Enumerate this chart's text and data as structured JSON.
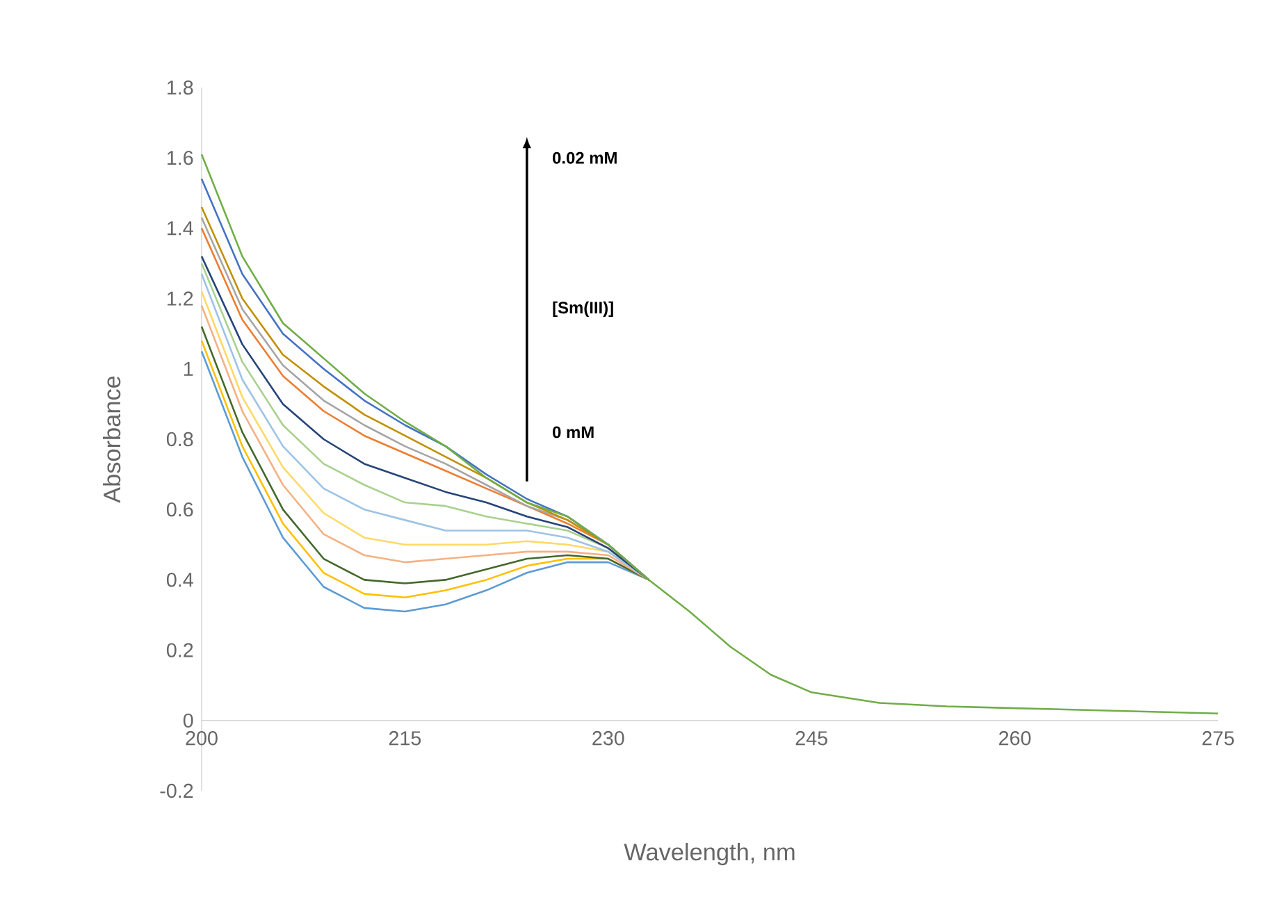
{
  "chart_data": {
    "type": "line",
    "xlabel": "Wavelength, nm",
    "ylabel": "Absorbance",
    "annotations": [
      "0.02 mM",
      "[Sm(III)]",
      "0 mM"
    ],
    "x": [
      200,
      203,
      206,
      209,
      212,
      215,
      218,
      221,
      224,
      227,
      230,
      233,
      236,
      239,
      242,
      245,
      250,
      255,
      260,
      265,
      270,
      275
    ],
    "series": [
      {
        "color": "#5b9bd5",
        "values": [
          1.05,
          0.75,
          0.52,
          0.38,
          0.32,
          0.31,
          0.33,
          0.37,
          0.42,
          0.45,
          0.45,
          0.4,
          null,
          null,
          null,
          null,
          null,
          null,
          null,
          null,
          null,
          null
        ]
      },
      {
        "color": "#ffc000",
        "values": [
          1.08,
          0.78,
          0.56,
          0.42,
          0.36,
          0.35,
          0.37,
          0.4,
          0.44,
          0.46,
          0.46,
          0.4,
          null,
          null,
          null,
          null,
          null,
          null,
          null,
          null,
          null,
          null
        ]
      },
      {
        "color": "#43682b",
        "values": [
          1.12,
          0.82,
          0.6,
          0.46,
          0.4,
          0.39,
          0.4,
          0.43,
          0.46,
          0.47,
          0.46,
          0.4,
          null,
          null,
          null,
          null,
          null,
          null,
          null,
          null,
          null,
          null
        ]
      },
      {
        "color": "#f4b183",
        "values": [
          1.18,
          0.88,
          0.67,
          0.53,
          0.47,
          0.45,
          0.46,
          0.47,
          0.48,
          0.48,
          0.47,
          0.4,
          null,
          null,
          null,
          null,
          null,
          null,
          null,
          null,
          null,
          null
        ]
      },
      {
        "color": "#ffd966",
        "values": [
          1.22,
          0.92,
          0.72,
          0.59,
          0.52,
          0.5,
          0.5,
          0.5,
          0.51,
          0.5,
          0.48,
          0.4,
          null,
          null,
          null,
          null,
          null,
          null,
          null,
          null,
          null,
          null
        ]
      },
      {
        "color": "#9dc3e6",
        "values": [
          1.27,
          0.97,
          0.78,
          0.66,
          0.6,
          0.57,
          0.54,
          0.54,
          0.54,
          0.52,
          0.48,
          0.4,
          null,
          null,
          null,
          null,
          null,
          null,
          null,
          null,
          null,
          null
        ]
      },
      {
        "color": "#a9d18e",
        "values": [
          1.3,
          1.02,
          0.84,
          0.73,
          0.67,
          0.62,
          0.61,
          0.58,
          0.56,
          0.54,
          0.49,
          0.4,
          null,
          null,
          null,
          null,
          null,
          null,
          null,
          null,
          null,
          null
        ]
      },
      {
        "color": "#264478",
        "values": [
          1.32,
          1.07,
          0.9,
          0.8,
          0.73,
          0.69,
          0.65,
          0.62,
          0.58,
          0.55,
          0.49,
          0.4,
          null,
          null,
          null,
          null,
          null,
          null,
          null,
          null,
          null,
          null
        ]
      },
      {
        "color": "#ed7d31",
        "values": [
          1.4,
          1.14,
          0.98,
          0.88,
          0.81,
          0.76,
          0.71,
          0.66,
          0.61,
          0.56,
          0.5,
          0.4,
          null,
          null,
          null,
          null,
          null,
          null,
          null,
          null,
          null,
          null
        ]
      },
      {
        "color": "#a5a5a5",
        "values": [
          1.43,
          1.17,
          1.01,
          0.91,
          0.84,
          0.78,
          0.73,
          0.67,
          0.61,
          0.57,
          0.5,
          0.4,
          null,
          null,
          null,
          null,
          null,
          null,
          null,
          null,
          null,
          null
        ]
      },
      {
        "color": "#c09000",
        "values": [
          1.46,
          1.2,
          1.04,
          0.95,
          0.87,
          0.81,
          0.75,
          0.69,
          0.62,
          0.57,
          0.5,
          0.4,
          null,
          null,
          null,
          null,
          null,
          null,
          null,
          null,
          null,
          null
        ]
      },
      {
        "color": "#4472c4",
        "values": [
          1.54,
          1.27,
          1.1,
          1.0,
          0.91,
          0.84,
          0.78,
          0.7,
          0.63,
          0.58,
          0.5,
          0.4,
          null,
          null,
          null,
          null,
          null,
          null,
          null,
          null,
          null,
          null
        ]
      },
      {
        "color": "#70ad47",
        "values": [
          1.61,
          1.32,
          1.13,
          1.03,
          0.93,
          0.85,
          0.78,
          0.69,
          0.62,
          0.58,
          0.5,
          0.4,
          0.31,
          0.21,
          0.13,
          0.08,
          0.05,
          0.04,
          0.035,
          0.03,
          0.025,
          0.02
        ]
      }
    ],
    "xlim": [
      200,
      275
    ],
    "xticks": [
      200,
      215,
      230,
      245,
      260,
      275
    ],
    "ylim": [
      -0.2,
      1.8
    ],
    "yticks": [
      -0.2,
      0,
      0.2,
      0.4,
      0.6,
      0.8,
      1,
      1.2,
      1.4,
      1.6,
      1.8
    ],
    "marker": "none",
    "line_style": "solid"
  }
}
